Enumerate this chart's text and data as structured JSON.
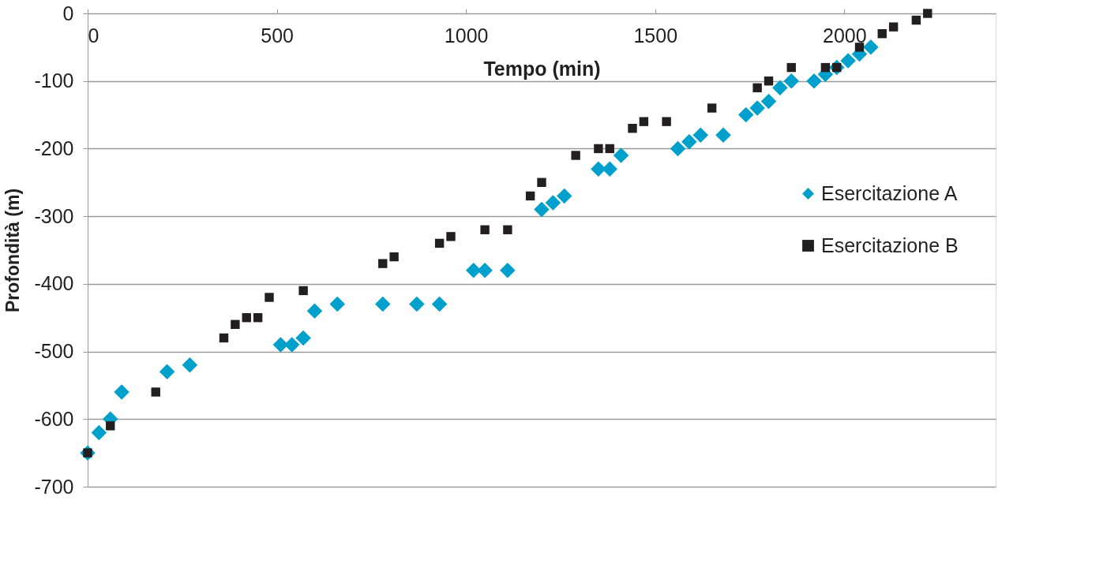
{
  "chart_data": {
    "type": "scatter",
    "xlabel": "Tempo (min)",
    "ylabel": "Profondità (m)",
    "xlim": [
      0,
      2400
    ],
    "xticks": [
      0,
      500,
      1000,
      1500,
      2000
    ],
    "ylim": [
      -700,
      0
    ],
    "yticks": [
      -700,
      -600,
      -500,
      -400,
      -300,
      -200,
      -100,
      0
    ],
    "grid": "y",
    "legend": "right",
    "series": [
      {
        "name": "Esercitazione A",
        "color": "#00a0cc",
        "marker": "diamond",
        "x": [
          0,
          30,
          60,
          90,
          210,
          270,
          510,
          540,
          570,
          600,
          660,
          780,
          870,
          930,
          1020,
          1050,
          1110,
          1200,
          1230,
          1260,
          1350,
          1380,
          1410,
          1560,
          1590,
          1620,
          1680,
          1740,
          1770,
          1800,
          1830,
          1860,
          1920,
          1950,
          1980,
          2010,
          2040,
          2070
        ],
        "values": [
          -650,
          -620,
          -600,
          -560,
          -530,
          -520,
          -490,
          -490,
          -480,
          -440,
          -430,
          -430,
          -430,
          -430,
          -380,
          -380,
          -380,
          -290,
          -280,
          -270,
          -230,
          -230,
          -210,
          -200,
          -190,
          -180,
          -180,
          -150,
          -140,
          -130,
          -110,
          -100,
          -100,
          -90,
          -80,
          -70,
          -60,
          -50
        ]
      },
      {
        "name": "Esercitazione B",
        "color": "#231f20",
        "marker": "square",
        "x": [
          0,
          60,
          180,
          360,
          390,
          420,
          450,
          480,
          570,
          780,
          810,
          930,
          960,
          1050,
          1110,
          1170,
          1200,
          1290,
          1350,
          1380,
          1440,
          1470,
          1530,
          1650,
          1770,
          1800,
          1860,
          1950,
          1980,
          2040,
          2100,
          2130,
          2190,
          2220
        ],
        "values": [
          -650,
          -610,
          -560,
          -480,
          -460,
          -450,
          -450,
          -420,
          -410,
          -370,
          -360,
          -340,
          -330,
          -320,
          -320,
          -270,
          -250,
          -210,
          -200,
          -200,
          -170,
          -160,
          -160,
          -140,
          -110,
          -100,
          -80,
          -80,
          -80,
          -50,
          -30,
          -20,
          -10,
          0
        ]
      }
    ]
  }
}
